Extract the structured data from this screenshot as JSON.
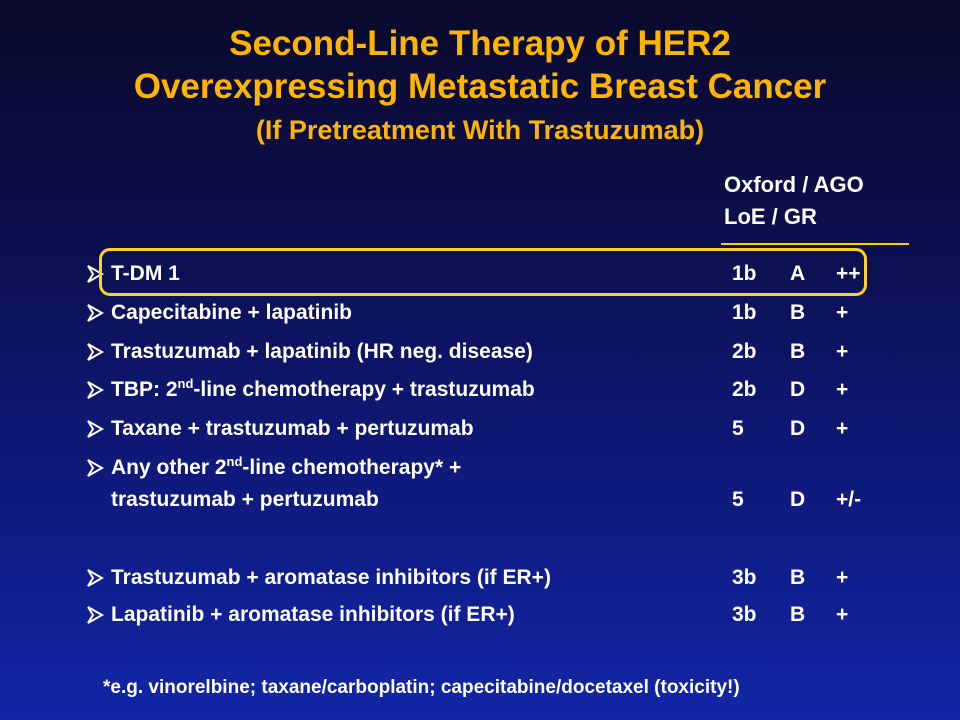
{
  "title": {
    "line1": "Second-Line Therapy of HER2",
    "line2": "Overexpressing Metastatic Breast Cancer",
    "line3": "(If Pretreatment With Trastuzumab)"
  },
  "header": {
    "line1": "Oxford / AGO",
    "line2": "LoE  /  GR"
  },
  "rows": [
    {
      "parts": [
        "T-DM 1"
      ],
      "loe": "1b",
      "grade": "A",
      "rec": "++",
      "highlighted": true
    },
    {
      "parts": [
        "Capecitabine + lapatinib"
      ],
      "loe": "1b",
      "grade": "B",
      "rec": "+"
    },
    {
      "parts": [
        "Trastuzumab + lapatinib (HR neg. disease)"
      ],
      "loe": "2b",
      "grade": "B",
      "rec": "+"
    },
    {
      "parts": [
        "TBP: 2",
        "nd",
        "-line chemotherapy + trastuzumab"
      ],
      "loe": "2b",
      "grade": "D",
      "rec": "+"
    },
    {
      "parts": [
        "Taxane + trastuzumab + pertuzumab"
      ],
      "loe": "5",
      "grade": "D",
      "rec": "+"
    },
    {
      "parts": [
        "Any other 2",
        "nd",
        "-line chemotherapy* +"
      ],
      "line2": "trastuzumab + pertuzumab",
      "loe": "5",
      "grade": "D",
      "rec": "+/-"
    },
    {
      "parts": [
        "Trastuzumab + aromatase inhibitors (if ER+)"
      ],
      "loe": "3b",
      "grade": "B",
      "rec": "+"
    },
    {
      "parts": [
        "Lapatinib + aromatase inhibitors (if ER+)"
      ],
      "loe": "3b",
      "grade": "B",
      "rec": "+"
    }
  ],
  "footnote": "*e.g. vinorelbine; taxane/carboplatin; capecitabine/docetaxel (toxicity!)",
  "colors": {
    "title": "#ffb400",
    "highlight": "#ffd21e",
    "text": "#ffffff"
  },
  "icons": {
    "bullet": "arrowhead-bullet-icon"
  }
}
